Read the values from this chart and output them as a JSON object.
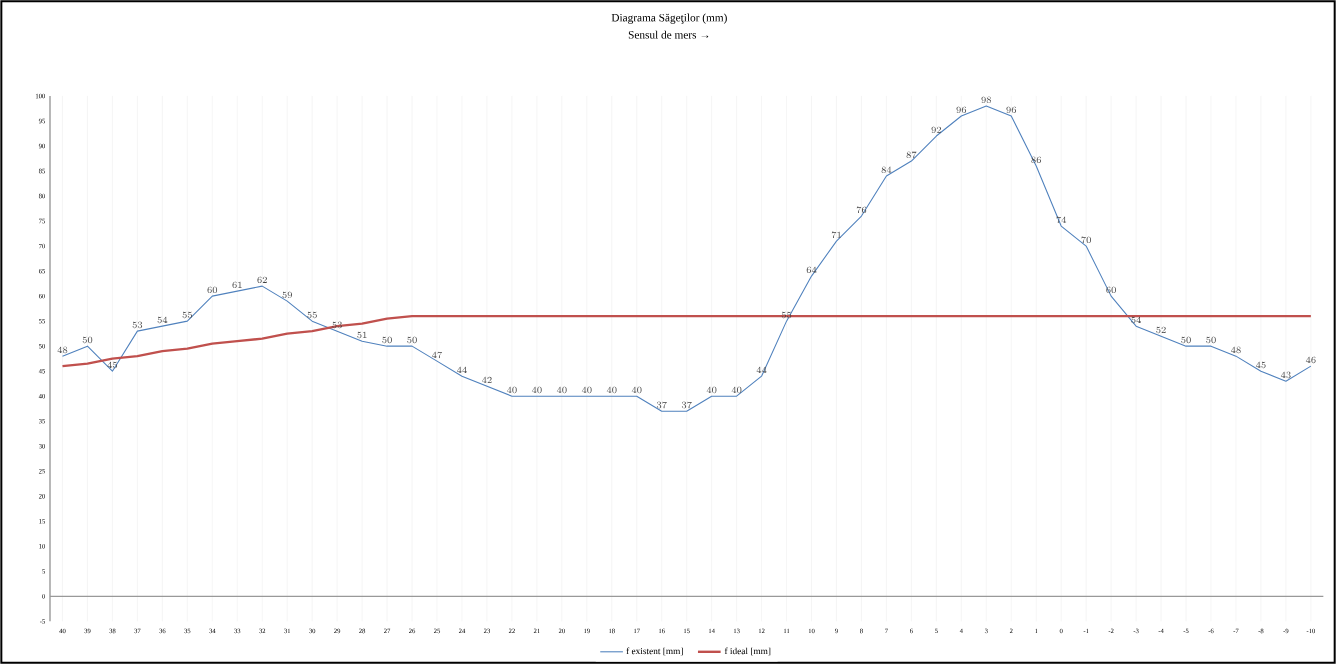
{
  "chart_data": {
    "type": "line",
    "title": "Diagrama Săgeţilor (mm)",
    "subtitle": "Sensul de mers →",
    "categories": [
      "40",
      "39",
      "38",
      "37",
      "36",
      "35",
      "34",
      "33",
      "32",
      "31",
      "30",
      "29",
      "28",
      "27",
      "26",
      "25",
      "24",
      "23",
      "22",
      "21",
      "20",
      "19",
      "18",
      "17",
      "16",
      "15",
      "14",
      "13",
      "12",
      "11",
      "10",
      "9",
      "8",
      "7",
      "6",
      "5",
      "4",
      "3",
      "2",
      "1",
      "0",
      "-1",
      "-2",
      "-3",
      "-4",
      "-5",
      "-6",
      "-7",
      "-8",
      "-9",
      "-10"
    ],
    "series": [
      {
        "name": "f existent [mm]",
        "color": "#4f81bd",
        "data_labels": true,
        "values": [
          48,
          50,
          45,
          53,
          54,
          55,
          60,
          61,
          62,
          59,
          55,
          53,
          51,
          50,
          50,
          47,
          44,
          42,
          40,
          40,
          40,
          40,
          40,
          40,
          37,
          37,
          40,
          40,
          44,
          55,
          64,
          71,
          76,
          84,
          87,
          92,
          96,
          98,
          96,
          86,
          74,
          70,
          60,
          54,
          52,
          50,
          50,
          48,
          45,
          43,
          46
        ]
      },
      {
        "name": "f ideal [mm]",
        "color": "#c0504d",
        "values": [
          46,
          46.5,
          47.5,
          48,
          49,
          49.5,
          50.5,
          51,
          51.5,
          52.5,
          53,
          54,
          54.5,
          55.5,
          56,
          56,
          56,
          56,
          56,
          56,
          56,
          56,
          56,
          56,
          56,
          56,
          56,
          56,
          56,
          56,
          56,
          56,
          56,
          56,
          56,
          56,
          56,
          56,
          56,
          56,
          56,
          56,
          56,
          56,
          56,
          56,
          56,
          56,
          56,
          56,
          56
        ]
      }
    ],
    "ylim": [
      -5,
      100
    ],
    "yticks": [
      -5,
      0,
      5,
      10,
      15,
      20,
      25,
      30,
      35,
      40,
      45,
      50,
      55,
      60,
      65,
      70,
      75,
      80,
      85,
      90,
      95,
      100
    ],
    "grid": "x",
    "legend": "bottom",
    "marker": "none",
    "line_style": "solid"
  }
}
